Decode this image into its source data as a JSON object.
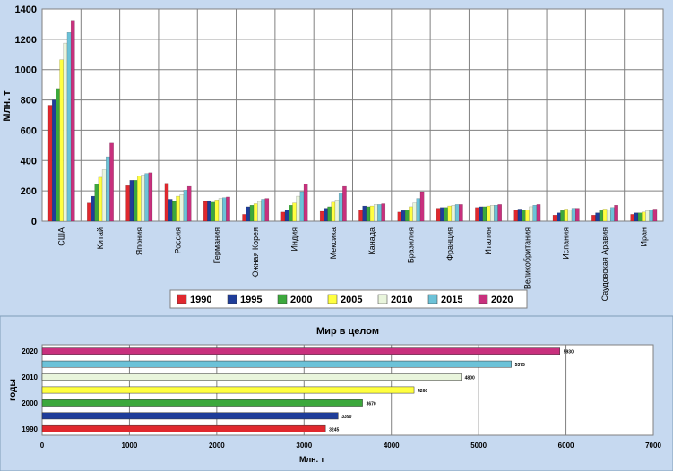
{
  "chart_data": [
    {
      "type": "bar",
      "title": "",
      "xlabel": "",
      "ylabel": "Млн. т",
      "ylim": [
        0,
        1400
      ],
      "yticks": [
        "0",
        "200",
        "400",
        "600",
        "800",
        "1000",
        "1200",
        "1400"
      ],
      "grid": true,
      "legend_position": "bottom",
      "categories": [
        "США",
        "Китай",
        "Япония",
        "Россия",
        "Германия",
        "Южная Корея",
        "Индия",
        "Мексика",
        "Канада",
        "Бразилия",
        "Франция",
        "Италия",
        "Великобритания",
        "Испания",
        "Саудовская Аравия",
        "Иран"
      ],
      "series": [
        {
          "name": "1990",
          "color": "#e0282e",
          "values": [
            765,
            120,
            235,
            250,
            130,
            45,
            60,
            65,
            75,
            60,
            85,
            90,
            75,
            40,
            40,
            45
          ]
        },
        {
          "name": "1995",
          "color": "#1f3d99",
          "values": [
            800,
            165,
            270,
            145,
            135,
            95,
            75,
            85,
            100,
            70,
            90,
            95,
            80,
            55,
            55,
            55
          ]
        },
        {
          "name": "2000",
          "color": "#3ca83c",
          "values": [
            875,
            245,
            270,
            130,
            125,
            105,
            105,
            95,
            95,
            75,
            90,
            95,
            75,
            70,
            70,
            55
          ]
        },
        {
          "name": "2005",
          "color": "#ffff40",
          "values": [
            1065,
            290,
            300,
            165,
            140,
            115,
            120,
            125,
            100,
            95,
            100,
            100,
            75,
            80,
            80,
            60
          ]
        },
        {
          "name": "2010",
          "color": "#e9f5dc",
          "values": [
            1175,
            340,
            305,
            175,
            150,
            130,
            165,
            140,
            110,
            120,
            105,
            105,
            95,
            75,
            75,
            70
          ]
        },
        {
          "name": "2015",
          "color": "#6cc2d8",
          "values": [
            1245,
            425,
            315,
            205,
            155,
            145,
            195,
            185,
            110,
            150,
            110,
            105,
            105,
            85,
            90,
            75
          ]
        },
        {
          "name": "2020",
          "color": "#c8307d",
          "values": [
            1325,
            515,
            320,
            230,
            160,
            150,
            245,
            230,
            115,
            195,
            110,
            110,
            110,
            85,
            105,
            80
          ]
        }
      ]
    },
    {
      "type": "bar",
      "orientation": "horizontal",
      "title": "Мир в целом",
      "xlabel": "Млн. т",
      "ylabel": "годы",
      "xlim": [
        0,
        7000
      ],
      "xticks": [
        "0",
        "1000",
        "2000",
        "3000",
        "4000",
        "5000",
        "6000",
        "7000"
      ],
      "grid": true,
      "categories": [
        "1990",
        "1995",
        "2000",
        "2005",
        "2010",
        "2015",
        "2020"
      ],
      "category_labels_shown": [
        "1990",
        "",
        "2000",
        "",
        "2010",
        "",
        "2020"
      ],
      "values": [
        3245,
        3390,
        3670,
        4260,
        4800,
        5375,
        5930
      ],
      "value_labels": [
        "3245",
        "3390",
        "3670",
        "4260",
        "4800",
        "5375",
        "5930"
      ],
      "colors": [
        "#e0282e",
        "#1f3d99",
        "#3ca83c",
        "#ffff40",
        "#e9f5dc",
        "#6cc2d8",
        "#c8307d"
      ]
    }
  ]
}
